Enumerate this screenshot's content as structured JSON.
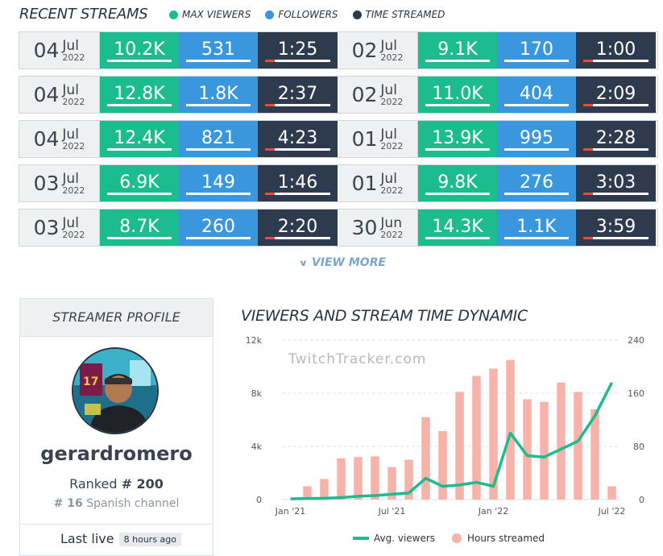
{
  "recent_streams": {
    "title": "RECENT STREAMS",
    "legend": [
      {
        "label": "MAX VIEWERS",
        "color": "#1cbc8e"
      },
      {
        "label": "FOLLOWERS",
        "color": "#3a97dd"
      },
      {
        "label": "TIME STREAMED",
        "color": "#2e3b4e"
      }
    ],
    "rows": [
      [
        {
          "day": "04",
          "month": "Jul",
          "year": "2022",
          "max_viewers": "10.2K",
          "followers": "531",
          "time": "1:25"
        },
        {
          "day": "02",
          "month": "Jul",
          "year": "2022",
          "max_viewers": "9.1K",
          "followers": "170",
          "time": "1:00"
        }
      ],
      [
        {
          "day": "04",
          "month": "Jul",
          "year": "2022",
          "max_viewers": "12.8K",
          "followers": "1.8K",
          "time": "2:37"
        },
        {
          "day": "02",
          "month": "Jul",
          "year": "2022",
          "max_viewers": "11.0K",
          "followers": "404",
          "time": "2:09"
        }
      ],
      [
        {
          "day": "04",
          "month": "Jul",
          "year": "2022",
          "max_viewers": "12.4K",
          "followers": "821",
          "time": "4:23"
        },
        {
          "day": "01",
          "month": "Jul",
          "year": "2022",
          "max_viewers": "13.9K",
          "followers": "995",
          "time": "2:28"
        }
      ],
      [
        {
          "day": "03",
          "month": "Jul",
          "year": "2022",
          "max_viewers": "6.9K",
          "followers": "149",
          "time": "1:46"
        },
        {
          "day": "01",
          "month": "Jul",
          "year": "2022",
          "max_viewers": "9.8K",
          "followers": "276",
          "time": "3:03"
        }
      ],
      [
        {
          "day": "03",
          "month": "Jul",
          "year": "2022",
          "max_viewers": "8.7K",
          "followers": "260",
          "time": "2:20"
        },
        {
          "day": "30",
          "month": "Jun",
          "year": "2022",
          "max_viewers": "14.3K",
          "followers": "1.1K",
          "time": "3:59"
        }
      ]
    ],
    "view_more": "VIEW MORE"
  },
  "profile": {
    "header": "STREAMER PROFILE",
    "username": "gerardromero",
    "ranked_label": "Ranked",
    "rank": "# 200",
    "channel_rank": "# 16",
    "channel_label": "Spanish channel",
    "last_live_label": "Last live",
    "last_live_value": "8 hours ago"
  },
  "chart": {
    "title": "VIEWERS AND STREAM TIME DYNAMIC",
    "watermark": "TwitchTracker.com",
    "colors": {
      "line": "#1cbc8e",
      "bar": "#f7b2aa"
    }
  },
  "chart_data": {
    "type": "bar+line",
    "title": "VIEWERS AND STREAM TIME DYNAMIC",
    "x_tick_labels": [
      "Jan '21",
      "Jul '21",
      "Jan '22",
      "Jul '22"
    ],
    "y_left_ticks": [
      "0",
      "4k",
      "8k",
      "12k"
    ],
    "y_right_ticks": [
      "0",
      "80",
      "160",
      "240"
    ],
    "ylim_left": [
      0,
      12000
    ],
    "ylim_right": [
      0,
      240
    ],
    "series": [
      {
        "name": "Avg. viewers",
        "type": "line",
        "axis": "left",
        "values": [
          50,
          80,
          100,
          150,
          250,
          300,
          400,
          500,
          1600,
          1000,
          1100,
          1300,
          1000,
          5000,
          3300,
          3200,
          3800,
          4400,
          6300,
          8800
        ]
      },
      {
        "name": "Hours streamed",
        "type": "bar",
        "axis": "right",
        "values": [
          0,
          20,
          31,
          62,
          64,
          65,
          49,
          60,
          124,
          103,
          162,
          186,
          197,
          210,
          151,
          147,
          176,
          162,
          136,
          20
        ]
      }
    ]
  }
}
